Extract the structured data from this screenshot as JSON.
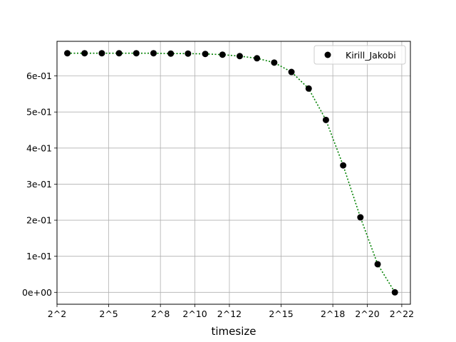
{
  "chart_data": {
    "type": "scatter",
    "xlabel": "timesize",
    "ylabel": "",
    "x_scale": "log2",
    "xlim": [
      2,
      22.5
    ],
    "ylim": [
      -0.033,
      0.696
    ],
    "x_ticks": [
      {
        "value": 2,
        "label": "2^2"
      },
      {
        "value": 5,
        "label": "2^5"
      },
      {
        "value": 8,
        "label": "2^8"
      },
      {
        "value": 10,
        "label": "2^10"
      },
      {
        "value": 12,
        "label": "2^12"
      },
      {
        "value": 15,
        "label": "2^15"
      },
      {
        "value": 18,
        "label": "2^18"
      },
      {
        "value": 20,
        "label": "2^20"
      },
      {
        "value": 22,
        "label": "2^22"
      }
    ],
    "y_ticks": [
      {
        "value": 0.0,
        "label": "0e+00"
      },
      {
        "value": 0.1,
        "label": "1e-01"
      },
      {
        "value": 0.2,
        "label": "2e-01"
      },
      {
        "value": 0.3,
        "label": "3e-01"
      },
      {
        "value": 0.4,
        "label": "4e-01"
      },
      {
        "value": 0.5,
        "label": "5e-01"
      },
      {
        "value": 0.6,
        "label": "6e-01"
      }
    ],
    "grid": true,
    "legend_position": "top-right",
    "series": [
      {
        "name": "Kirill_Jakobi",
        "marker_color": "#000000",
        "line_color": "#008000",
        "line_style": "dotted",
        "x": [
          2.6,
          3.6,
          4.6,
          5.6,
          6.6,
          7.6,
          8.6,
          9.6,
          10.6,
          11.6,
          12.6,
          13.6,
          14.6,
          15.6,
          16.6,
          17.6,
          18.6,
          19.6,
          20.6,
          21.6
        ],
        "y": [
          0.663,
          0.663,
          0.663,
          0.663,
          0.663,
          0.663,
          0.662,
          0.662,
          0.661,
          0.659,
          0.655,
          0.649,
          0.637,
          0.611,
          0.565,
          0.478,
          0.352,
          0.208,
          0.078,
          0.0
        ]
      }
    ]
  }
}
